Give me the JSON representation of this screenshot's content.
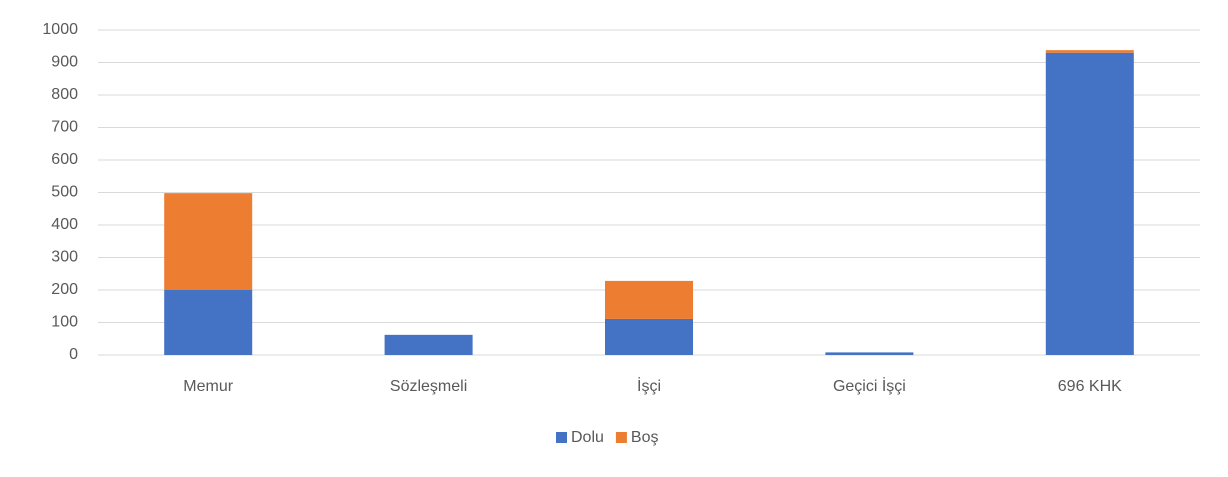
{
  "chart_data": {
    "type": "stacked_bar",
    "categories": [
      "Memur",
      "Sözleşmeli",
      "İşçi",
      "Geçici İşçi",
      "696 KHK"
    ],
    "series": [
      {
        "name": "Dolu",
        "color": "#4472c4",
        "values": [
          200,
          62,
          111,
          8,
          930
        ]
      },
      {
        "name": "Boş",
        "color": "#ed7d31",
        "values": [
          298,
          0,
          117,
          0,
          8
        ]
      }
    ],
    "ylim": [
      0,
      1000
    ],
    "yticks": [
      0,
      100,
      200,
      300,
      400,
      500,
      600,
      700,
      800,
      900,
      1000
    ],
    "grid": true,
    "legend": "bottom"
  }
}
